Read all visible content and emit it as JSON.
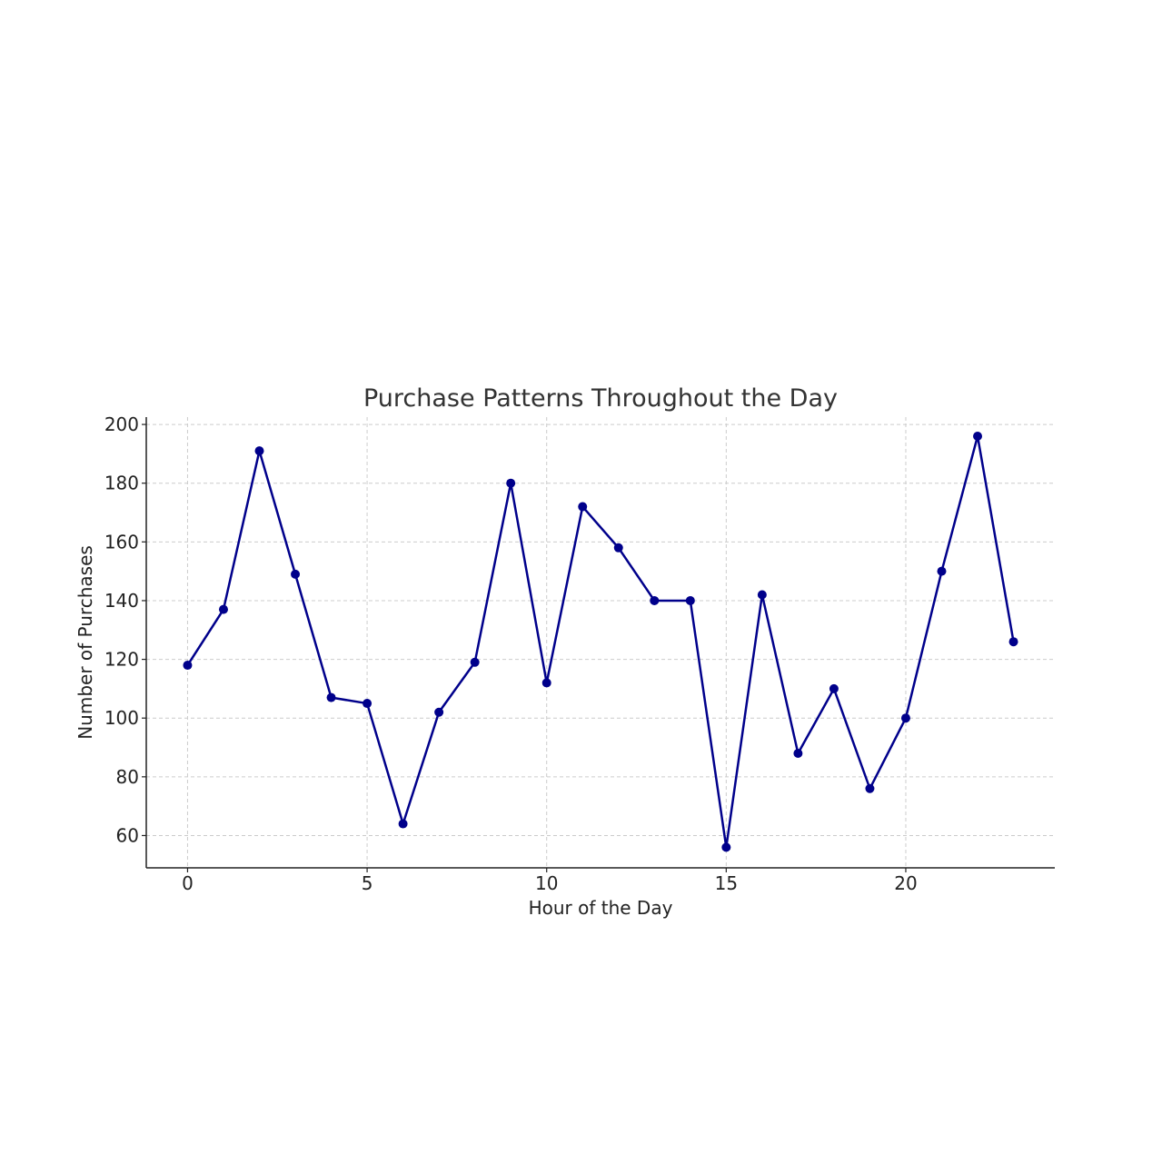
{
  "chart_data": {
    "type": "line",
    "title": "Purchase Patterns Throughout the Day",
    "xlabel": "Hour of the Day",
    "ylabel": "Number of Purchases",
    "xlim": [
      -1.15,
      24.15
    ],
    "ylim": [
      49,
      202.5
    ],
    "xticks": [
      0,
      5,
      10,
      15,
      20
    ],
    "yticks": [
      60,
      80,
      100,
      120,
      140,
      160,
      180,
      200
    ],
    "grid": true,
    "series_color": "#00008b",
    "x": [
      0,
      1,
      2,
      3,
      4,
      5,
      6,
      7,
      8,
      9,
      10,
      11,
      12,
      13,
      14,
      15,
      16,
      17,
      18,
      19,
      20,
      21,
      22,
      23
    ],
    "series": [
      {
        "values": [
          118,
          137,
          191,
          149,
          107,
          105,
          64,
          102,
          119,
          180,
          112,
          172,
          158,
          140,
          140,
          56,
          142,
          88,
          110,
          76,
          100,
          150,
          196,
          126
        ]
      }
    ]
  }
}
